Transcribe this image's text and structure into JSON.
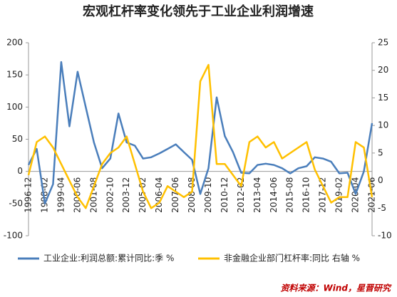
{
  "chart_data": {
    "type": "line",
    "title": "宏观杠杆率变化领先于工业企业利润增速",
    "categories": [
      "1996-12",
      null,
      "1998-02",
      null,
      "1999-04",
      null,
      "2000-06",
      null,
      "2001-08",
      null,
      "2002-10",
      null,
      "2003-12",
      null,
      "2005-02",
      null,
      "2006-04",
      null,
      "2007-06",
      null,
      "2008-08",
      null,
      "2009-10",
      null,
      "2010-12",
      null,
      "2012-02",
      null,
      "2013-04",
      null,
      "2014-06",
      null,
      "2015-08",
      null,
      "2016-10",
      null,
      "2017-12",
      null,
      "2019-02",
      null,
      "2020-04",
      null,
      "2021-06"
    ],
    "series": [
      {
        "name": "工业企业:利润总额:累计同比:季 %",
        "color": "#4a7ebb",
        "values": [
          10,
          35,
          -50,
          -20,
          170,
          70,
          155,
          100,
          45,
          5,
          20,
          90,
          45,
          40,
          20,
          22,
          28,
          35,
          42,
          30,
          18,
          -35,
          5,
          115,
          55,
          30,
          -2,
          -3,
          10,
          12,
          10,
          5,
          -3,
          5,
          8,
          22,
          20,
          15,
          -3,
          -2,
          -35,
          0,
          75
        ]
      },
      {
        "name": "非金融企业部门杠杆率:同比 右轴 %",
        "color": "#ffc000",
        "axis": "y2",
        "values": [
          1,
          7,
          8,
          6,
          3,
          0,
          -3,
          -5,
          -1,
          3,
          5,
          6,
          8,
          3,
          -2,
          -5,
          -4,
          -1,
          -2,
          -3,
          -2,
          18,
          21,
          3,
          3,
          1,
          -1,
          7,
          8,
          6,
          7,
          4,
          5,
          6,
          7,
          2,
          -1,
          -4,
          -3,
          -3,
          7,
          6,
          -3
        ]
      }
    ],
    "ylim": [
      -100,
      200
    ],
    "yticks": [
      -100,
      -50,
      0,
      50,
      100,
      150,
      200
    ],
    "y2lim": [
      -10,
      25
    ],
    "y2ticks": [
      -10,
      -5,
      0,
      5,
      10,
      15,
      20,
      25
    ],
    "grid": false,
    "legend": "bottom",
    "source": "资料来源：Wind，星晋研究"
  }
}
